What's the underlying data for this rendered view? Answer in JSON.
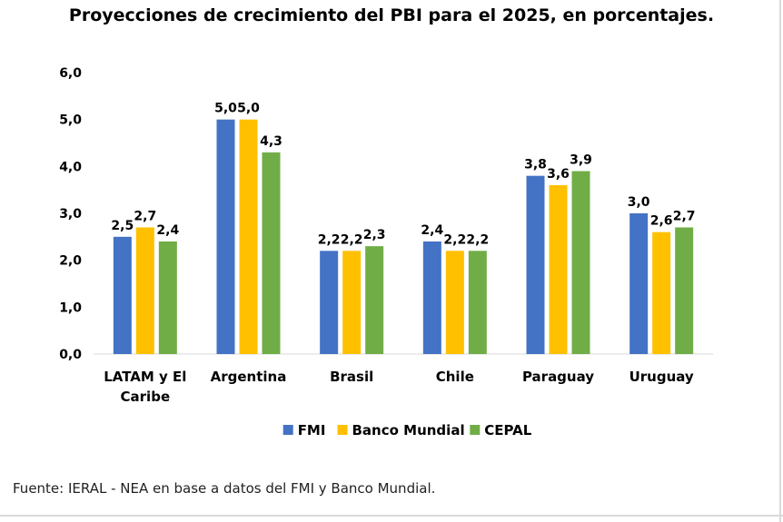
{
  "chart_data": {
    "type": "bar",
    "title": "Proyecciones de crecimiento del PBI para el 2025, en porcentajes.",
    "categories": [
      [
        "LATAM y El",
        "Caribe"
      ],
      [
        "Argentina"
      ],
      [
        "Brasil"
      ],
      [
        "Chile"
      ],
      [
        "Paraguay"
      ],
      [
        "Uruguay"
      ]
    ],
    "series": [
      {
        "name": "FMI",
        "color": "#4472C4",
        "values": [
          2.5,
          5.0,
          2.2,
          2.4,
          3.8,
          3.0
        ],
        "labels": [
          "2,5",
          "5,0",
          "2,2",
          "2,4",
          "3,8",
          "3,0"
        ]
      },
      {
        "name": "Banco Mundial",
        "color": "#FFC000",
        "values": [
          2.7,
          5.0,
          2.2,
          2.2,
          3.6,
          2.6
        ],
        "labels": [
          "2,7",
          "5,0",
          "2,2",
          "2,2",
          "3,6",
          "2,6"
        ]
      },
      {
        "name": "CEPAL",
        "color": "#70AD47",
        "values": [
          2.4,
          4.3,
          2.3,
          2.2,
          3.9,
          2.7
        ],
        "labels": [
          "2,4",
          "4,3",
          "2,3",
          "2,2",
          "3,9",
          "2,7"
        ]
      }
    ],
    "ylim": [
      0,
      6
    ],
    "yticks": [
      "0,0",
      "1,0",
      "2,0",
      "3,0",
      "4,0",
      "5,0",
      "6,0"
    ],
    "xlabel": "",
    "ylabel": "",
    "grid": false,
    "legend": "bottom-center"
  },
  "source": "Fuente: IERAL - NEA en base a datos del FMI y Banco Mundial."
}
